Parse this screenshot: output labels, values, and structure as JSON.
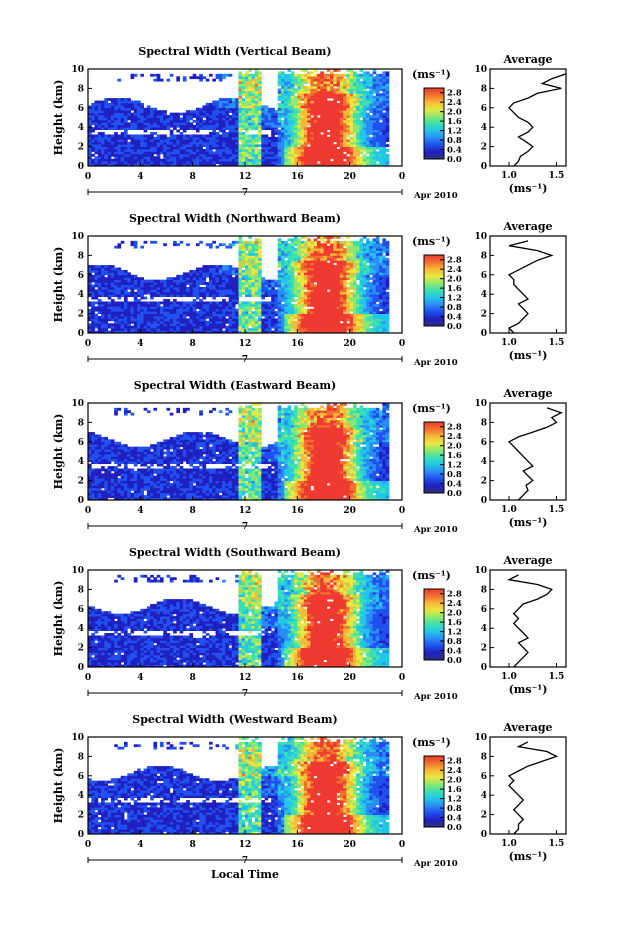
{
  "figure": {
    "xlabel": "Local Time",
    "date_label": "Apr 2010",
    "day_label": "7",
    "cb_unit": "(ms⁻¹)",
    "avg_title": "Average",
    "avg_xlabel": "(ms⁻¹)",
    "colors": {
      "colormap": [
        "#303080",
        "#2020c0",
        "#2050f0",
        "#2a8cf4",
        "#22c6e8",
        "#3ce0b0",
        "#8ce870",
        "#e8e840",
        "#f8b838",
        "#f07030",
        "#ee3a30"
      ],
      "average_line": "#000000"
    }
  },
  "chart_data": [
    {
      "type": "heatmap",
      "title": "Spectral Width (Vertical Beam)",
      "ylabel": "Height (km)",
      "xlim": [
        0,
        24
      ],
      "ylim": [
        0,
        10
      ],
      "x_ticks": [
        "0",
        "4",
        "8",
        "12",
        "16",
        "20",
        "0"
      ],
      "y_ticks": [
        "0",
        "2",
        "4",
        "6",
        "8",
        "10"
      ],
      "colorbar_ticks": [
        "0.0",
        "0.4",
        "0.8",
        "1.2",
        "1.6",
        "2.0",
        "2.4",
        "2.8"
      ],
      "colorbar_range": [
        0.0,
        3.0
      ],
      "average": {
        "xlim": [
          0.8,
          1.6
        ],
        "x_ticks": [
          "1.0",
          "1.5"
        ],
        "y_ticks": [
          "0",
          "2",
          "4",
          "6",
          "8",
          "10"
        ],
        "height": [
          0,
          0.5,
          1,
          1.5,
          2,
          2.5,
          3,
          3.5,
          4,
          4.5,
          5,
          5.5,
          6,
          6.5,
          7,
          7.5,
          8,
          8.5,
          9,
          9.5
        ],
        "value": [
          1.05,
          1.1,
          1.12,
          1.2,
          1.25,
          1.18,
          1.1,
          1.2,
          1.25,
          1.2,
          1.1,
          1.05,
          1.0,
          1.05,
          1.2,
          1.3,
          1.55,
          1.35,
          1.45,
          1.6
        ]
      }
    },
    {
      "type": "heatmap",
      "title": "Spectral Width (Northward Beam)",
      "ylabel": "Height (km)",
      "xlim": [
        0,
        24
      ],
      "ylim": [
        0,
        10
      ],
      "x_ticks": [
        "0",
        "4",
        "8",
        "12",
        "16",
        "20",
        "0"
      ],
      "y_ticks": [
        "0",
        "2",
        "4",
        "6",
        "8",
        "10"
      ],
      "colorbar_ticks": [
        "0.0",
        "0.4",
        "0.8",
        "1.2",
        "1.6",
        "2.0",
        "2.4",
        "2.8"
      ],
      "colorbar_range": [
        0.0,
        3.0
      ],
      "average": {
        "xlim": [
          0.8,
          1.6
        ],
        "x_ticks": [
          "1.0",
          "1.5"
        ],
        "y_ticks": [
          "0",
          "2",
          "4",
          "6",
          "8",
          "10"
        ],
        "height": [
          0,
          0.5,
          1,
          1.5,
          2,
          2.5,
          3,
          3.5,
          4,
          4.5,
          5,
          5.5,
          6,
          6.5,
          7,
          7.5,
          8,
          8.5,
          9,
          9.5
        ],
        "value": [
          1.05,
          1.0,
          1.1,
          1.15,
          1.2,
          1.15,
          1.1,
          1.2,
          1.15,
          1.1,
          1.05,
          1.05,
          1.0,
          1.1,
          1.2,
          1.3,
          1.45,
          1.3,
          1.0,
          1.2
        ]
      }
    },
    {
      "type": "heatmap",
      "title": "Spectral Width (Eastward Beam)",
      "ylabel": "Height (km)",
      "xlim": [
        0,
        24
      ],
      "ylim": [
        0,
        10
      ],
      "x_ticks": [
        "0",
        "4",
        "8",
        "12",
        "16",
        "20",
        "0"
      ],
      "y_ticks": [
        "0",
        "2",
        "4",
        "6",
        "8",
        "10"
      ],
      "colorbar_ticks": [
        "0.0",
        "0.4",
        "0.8",
        "1.2",
        "1.6",
        "2.0",
        "2.4",
        "2.8"
      ],
      "colorbar_range": [
        0.0,
        3.0
      ],
      "average": {
        "xlim": [
          0.8,
          1.6
        ],
        "x_ticks": [
          "1.0",
          "1.5"
        ],
        "y_ticks": [
          "0",
          "2",
          "4",
          "6",
          "8",
          "10"
        ],
        "height": [
          0,
          0.5,
          1,
          1.5,
          2,
          2.5,
          3,
          3.5,
          4,
          4.5,
          5,
          5.5,
          6,
          6.5,
          7,
          7.5,
          8,
          8.5,
          9,
          9.5
        ],
        "value": [
          1.1,
          1.15,
          1.2,
          1.18,
          1.25,
          1.2,
          1.15,
          1.25,
          1.2,
          1.15,
          1.1,
          1.05,
          1.0,
          1.1,
          1.25,
          1.4,
          1.5,
          1.45,
          1.55,
          1.4
        ]
      }
    },
    {
      "type": "heatmap",
      "title": "Spectral Width (Southward Beam)",
      "ylabel": "Height (km)",
      "xlim": [
        0,
        24
      ],
      "ylim": [
        0,
        10
      ],
      "x_ticks": [
        "0",
        "4",
        "8",
        "12",
        "16",
        "20",
        "0"
      ],
      "y_ticks": [
        "0",
        "2",
        "4",
        "6",
        "8",
        "10"
      ],
      "colorbar_ticks": [
        "0.0",
        "0.4",
        "0.8",
        "1.2",
        "1.6",
        "2.0",
        "2.4",
        "2.8"
      ],
      "colorbar_range": [
        0.0,
        3.0
      ],
      "average": {
        "xlim": [
          0.8,
          1.6
        ],
        "x_ticks": [
          "1.0",
          "1.5"
        ],
        "y_ticks": [
          "0",
          "2",
          "4",
          "6",
          "8",
          "10"
        ],
        "height": [
          0,
          0.5,
          1,
          1.5,
          2,
          2.5,
          3,
          3.5,
          4,
          4.5,
          5,
          5.5,
          6,
          6.5,
          7,
          7.5,
          8,
          8.5,
          9,
          9.5
        ],
        "value": [
          1.05,
          1.1,
          1.15,
          1.2,
          1.15,
          1.1,
          1.2,
          1.15,
          1.1,
          1.05,
          1.1,
          1.05,
          1.1,
          1.15,
          1.3,
          1.4,
          1.45,
          1.3,
          1.0,
          1.1
        ]
      }
    },
    {
      "type": "heatmap",
      "title": "Spectral Width (Westward Beam)",
      "ylabel": "Height (km)",
      "xlim": [
        0,
        24
      ],
      "ylim": [
        0,
        10
      ],
      "x_ticks": [
        "0",
        "4",
        "8",
        "12",
        "16",
        "20",
        "0"
      ],
      "y_ticks": [
        "0",
        "2",
        "4",
        "6",
        "8",
        "10"
      ],
      "colorbar_ticks": [
        "0.0",
        "0.4",
        "0.8",
        "1.2",
        "1.6",
        "2.0",
        "2.4",
        "2.8"
      ],
      "colorbar_range": [
        0.0,
        3.0
      ],
      "average": {
        "xlim": [
          0.8,
          1.6
        ],
        "x_ticks": [
          "1.0",
          "1.5"
        ],
        "y_ticks": [
          "0",
          "2",
          "4",
          "6",
          "8",
          "10"
        ],
        "height": [
          0,
          0.5,
          1,
          1.5,
          2,
          2.5,
          3,
          3.5,
          4,
          4.5,
          5,
          5.5,
          6,
          6.5,
          7,
          7.5,
          8,
          8.5,
          9,
          9.5
        ],
        "value": [
          1.05,
          1.1,
          1.1,
          1.15,
          1.1,
          1.05,
          1.1,
          1.15,
          1.1,
          1.05,
          1.0,
          1.05,
          1.0,
          1.1,
          1.2,
          1.35,
          1.5,
          1.4,
          1.1,
          1.2
        ]
      }
    }
  ]
}
